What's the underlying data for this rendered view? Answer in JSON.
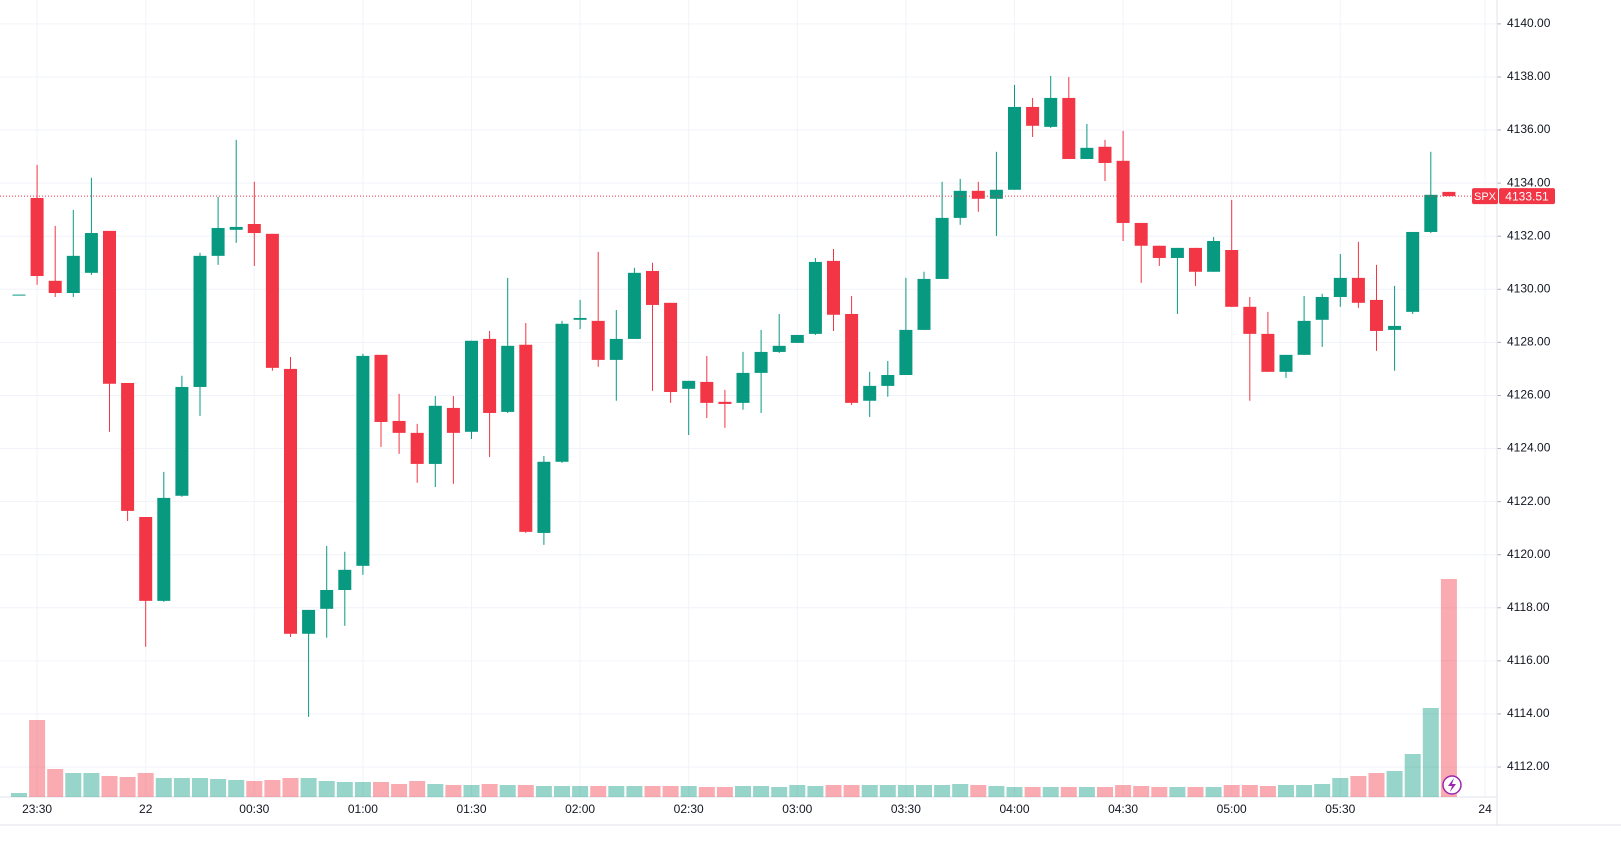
{
  "chart_data": {
    "type": "candlestick",
    "open": [
      4129.8,
      4133.44,
      4130.32,
      4129.86,
      4130.62,
      4132.2,
      4126.47,
      4121.42,
      4118.26,
      4122.22,
      4126.32,
      4131.26,
      4132.24,
      4132.46,
      4132.09,
      4127.0,
      4117.02,
      4117.96,
      4118.67,
      4119.58,
      4127.53,
      4125.04,
      4124.59,
      4123.42,
      4125.53,
      4124.63,
      4128.13,
      4125.38,
      4127.91,
      4120.82,
      4123.5,
      4128.85,
      4128.81,
      4127.34,
      4128.13,
      4130.69,
      4129.49,
      4126.25,
      4126.51,
      4125.76,
      4125.72,
      4126.85,
      4127.64,
      4127.98,
      4128.32,
      4131.07,
      4129.07,
      4125.8,
      4126.36,
      4126.77,
      4128.47,
      4130.39,
      4132.69,
      4133.71,
      4133.41,
      4133.75,
      4136.87,
      4136.12,
      4137.21,
      4134.91,
      4135.37,
      4134.84,
      4132.5,
      4131.64,
      4131.18,
      4131.56,
      4130.66,
      4131.48,
      4129.34,
      4128.32,
      4126.89,
      4127.53,
      4128.85,
      4129.71,
      4130.43,
      4129.6,
      4128.47,
      4129.15,
      4132.16,
      4133.67
    ],
    "high": [
      4129.8,
      4134.69,
      4132.39,
      4132.99,
      4134.2,
      4132.2,
      4126.47,
      4121.42,
      4123.12,
      4126.74,
      4131.37,
      4133.48,
      4135.63,
      4134.05,
      4132.09,
      4127.45,
      4117.92,
      4120.33,
      4120.11,
      4127.57,
      4127.53,
      4126.06,
      4124.93,
      4125.98,
      4125.98,
      4128.06,
      4128.43,
      4130.43,
      4128.73,
      4123.72,
      4128.81,
      4129.6,
      4131.41,
      4129.22,
      4130.81,
      4131.0,
      4129.49,
      4126.55,
      4127.49,
      4126.21,
      4127.64,
      4128.47,
      4129.07,
      4128.28,
      4131.18,
      4131.52,
      4129.75,
      4126.89,
      4127.3,
      4130.43,
      4130.66,
      4134.05,
      4134.16,
      4134.05,
      4135.18,
      4137.7,
      4137.21,
      4138.04,
      4138.0,
      4136.23,
      4135.63,
      4135.97,
      4132.5,
      4131.64,
      4131.56,
      4131.56,
      4131.97,
      4133.37,
      4129.71,
      4129.15,
      4127.53,
      4129.75,
      4129.83,
      4131.33,
      4131.79,
      4130.92,
      4130.13,
      4132.16,
      4135.18,
      4133.67
    ],
    "low": [
      4129.8,
      4130.17,
      4129.71,
      4129.71,
      4130.54,
      4124.63,
      4121.27,
      4116.53,
      4118.22,
      4122.18,
      4125.23,
      4130.92,
      4131.75,
      4130.88,
      4126.93,
      4116.9,
      4113.89,
      4116.87,
      4117.32,
      4119.24,
      4124.06,
      4123.8,
      4122.71,
      4122.55,
      4122.67,
      4124.36,
      4123.68,
      4125.34,
      4120.82,
      4120.37,
      4123.46,
      4128.5,
      4127.08,
      4125.8,
      4128.13,
      4126.17,
      4125.72,
      4124.51,
      4125.15,
      4124.78,
      4125.46,
      4125.34,
      4127.6,
      4127.98,
      4128.28,
      4128.43,
      4125.64,
      4125.19,
      4125.95,
      4126.77,
      4128.47,
      4130.39,
      4132.43,
      4132.92,
      4132.01,
      4133.75,
      4135.74,
      4136.08,
      4134.91,
      4134.91,
      4134.08,
      4131.82,
      4130.24,
      4130.88,
      4129.07,
      4130.13,
      4130.66,
      4129.34,
      4125.8,
      4126.89,
      4126.66,
      4127.53,
      4127.83,
      4129.34,
      4129.3,
      4127.68,
      4126.93,
      4129.07,
      4132.12,
      4133.51
    ],
    "close": [
      4129.8,
      4130.5,
      4129.86,
      4131.26,
      4132.12,
      4126.44,
      4121.65,
      4118.26,
      4122.14,
      4126.32,
      4131.26,
      4132.31,
      4132.35,
      4132.12,
      4127.04,
      4117.02,
      4117.92,
      4118.67,
      4119.43,
      4127.49,
      4125.0,
      4124.59,
      4123.42,
      4125.61,
      4124.59,
      4128.06,
      4125.34,
      4127.87,
      4120.86,
      4123.5,
      4128.7,
      4128.92,
      4127.34,
      4128.13,
      4130.62,
      4129.41,
      4126.13,
      4126.55,
      4125.72,
      4125.68,
      4126.85,
      4127.64,
      4127.87,
      4128.28,
      4131.03,
      4129.04,
      4125.72,
      4126.36,
      4126.77,
      4128.47,
      4130.39,
      4132.69,
      4133.71,
      4133.41,
      4133.75,
      4136.87,
      4136.16,
      4137.21,
      4134.91,
      4135.33,
      4134.76,
      4132.5,
      4131.64,
      4131.18,
      4131.56,
      4130.66,
      4131.82,
      4129.34,
      4128.32,
      4126.89,
      4127.53,
      4128.81,
      4129.71,
      4130.43,
      4129.49,
      4128.43,
      4128.62,
      4132.16,
      4133.56,
      4133.51
    ],
    "volume": [
      4,
      77,
      28,
      24,
      24,
      21,
      20,
      24,
      19,
      19,
      19,
      18,
      17,
      16,
      17,
      19,
      19,
      16,
      15,
      15,
      15,
      13,
      16,
      13,
      12,
      12,
      13,
      12,
      12,
      11,
      11,
      11,
      11,
      11,
      11,
      11,
      11,
      11,
      10,
      10,
      11,
      11,
      10,
      12,
      11,
      12,
      12,
      12,
      12,
      12,
      12,
      12,
      13,
      12,
      11,
      10,
      10,
      10,
      10,
      10,
      10,
      12,
      11,
      10,
      10,
      10,
      10,
      12,
      12,
      11,
      12,
      12,
      13,
      19,
      21,
      24,
      26,
      43,
      89,
      218
    ],
    "up_color": "#089981",
    "down_color": "#f23645",
    "x_labels": [
      "23:30",
      "22",
      "00:30",
      "01:00",
      "01:30",
      "02:00",
      "02:30",
      "03:00",
      "03:30",
      "04:00",
      "04:30",
      "05:00",
      "05:30",
      "24"
    ],
    "ylim": [
      4110.87,
      4140.9
    ],
    "yticks": [
      {
        "value": 4112,
        "label": "4112.00"
      },
      {
        "value": 4114,
        "label": "4114.00"
      },
      {
        "value": 4116,
        "label": "4116.00"
      },
      {
        "value": 4118,
        "label": "4118.00"
      },
      {
        "value": 4120,
        "label": "4120.00"
      },
      {
        "value": 4122,
        "label": "4122.00"
      },
      {
        "value": 4124,
        "label": "4124.00"
      },
      {
        "value": 4126,
        "label": "4126.00"
      },
      {
        "value": 4128,
        "label": "4128.00"
      },
      {
        "value": 4130,
        "label": "4130.00"
      },
      {
        "value": 4132,
        "label": "4132.00"
      },
      {
        "value": 4134,
        "label": "4134.00"
      },
      {
        "value": 4136,
        "label": "4136.00"
      },
      {
        "value": 4138,
        "label": "4138.00"
      },
      {
        "value": 4140,
        "label": "4140.00"
      }
    ],
    "grid": true,
    "last_price": {
      "name": "SPX",
      "value": 4133.51,
      "label": "4133.51"
    }
  }
}
